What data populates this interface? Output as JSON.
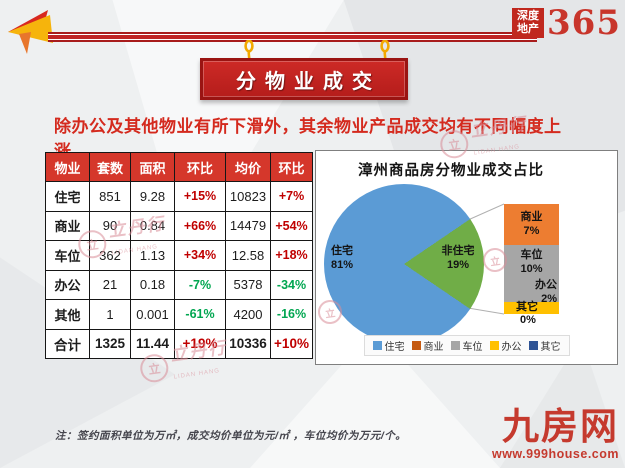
{
  "header": {
    "logo": {
      "line1": "深度",
      "line2": "地产",
      "number": "365"
    },
    "banner_title": "分物业成交"
  },
  "subtitle": "除办公及其他物业有所下滑外，其余物业产品成交均有不同幅度上涨。",
  "watermark": {
    "name": "立丹行",
    "latin": "LIDAN HANG",
    "ring_char": "立"
  },
  "table": {
    "columns": [
      "物业",
      "套数",
      "面积",
      "环比",
      "均价",
      "环比"
    ],
    "rows": [
      {
        "label": "住宅",
        "units": "851",
        "area": "9.28",
        "mom1": "+15%",
        "mom1_dir": "up",
        "price": "10823",
        "mom2": "+7%",
        "mom2_dir": "up"
      },
      {
        "label": "商业",
        "units": "90",
        "area": "0.84",
        "mom1": "+66%",
        "mom1_dir": "up",
        "price": "14479",
        "mom2": "+54%",
        "mom2_dir": "up"
      },
      {
        "label": "车位",
        "units": "362",
        "area": "1.13",
        "mom1": "+34%",
        "mom1_dir": "up",
        "price": "12.58",
        "mom2": "+18%",
        "mom2_dir": "up"
      },
      {
        "label": "办公",
        "units": "21",
        "area": "0.18",
        "mom1": "-7%",
        "mom1_dir": "down",
        "price": "5378",
        "mom2": "-34%",
        "mom2_dir": "down"
      },
      {
        "label": "其他",
        "units": "1",
        "area": "0.001",
        "mom1": "-61%",
        "mom1_dir": "down",
        "price": "4200",
        "mom2": "-16%",
        "mom2_dir": "down"
      },
      {
        "label": "合计",
        "units": "1325",
        "area": "11.44",
        "mom1": "+19%",
        "mom1_dir": "up",
        "price": "10336",
        "mom2": "+10%",
        "mom2_dir": "up"
      }
    ]
  },
  "chart_data": {
    "type": "pie",
    "title": "漳州商品房分物业成交占比",
    "pie": {
      "slices": [
        {
          "label": "住宅",
          "pct": 81,
          "color": "#5b9bd5"
        },
        {
          "label": "非住宅",
          "pct": 19,
          "color": "#70ad47"
        }
      ]
    },
    "breakdown_bar": {
      "segments": [
        {
          "label": "商业",
          "pct": 7,
          "color": "#ed7d31"
        },
        {
          "label": "车位",
          "pct": 10,
          "color": "#a6a6a6"
        },
        {
          "label": "办公",
          "pct": 2,
          "color": "#ffc000"
        },
        {
          "label": "其它",
          "pct": 0,
          "color": "#2e5395"
        }
      ]
    },
    "legend": [
      {
        "label": "住宅",
        "color": "#5b9bd5"
      },
      {
        "label": "商业",
        "color": "#c55a11"
      },
      {
        "label": "车位",
        "color": "#a6a6a6"
      },
      {
        "label": "办公",
        "color": "#ffc000"
      },
      {
        "label": "其它",
        "color": "#2e5395"
      }
    ],
    "legend_position": "bottom",
    "grid": false
  },
  "footer": {
    "note": "注：签约面积单位为万㎡，成交均价单位为元/㎡ ，车位均价为万元/个。",
    "site_name": "九房网",
    "site_url": "www.999house.com"
  }
}
